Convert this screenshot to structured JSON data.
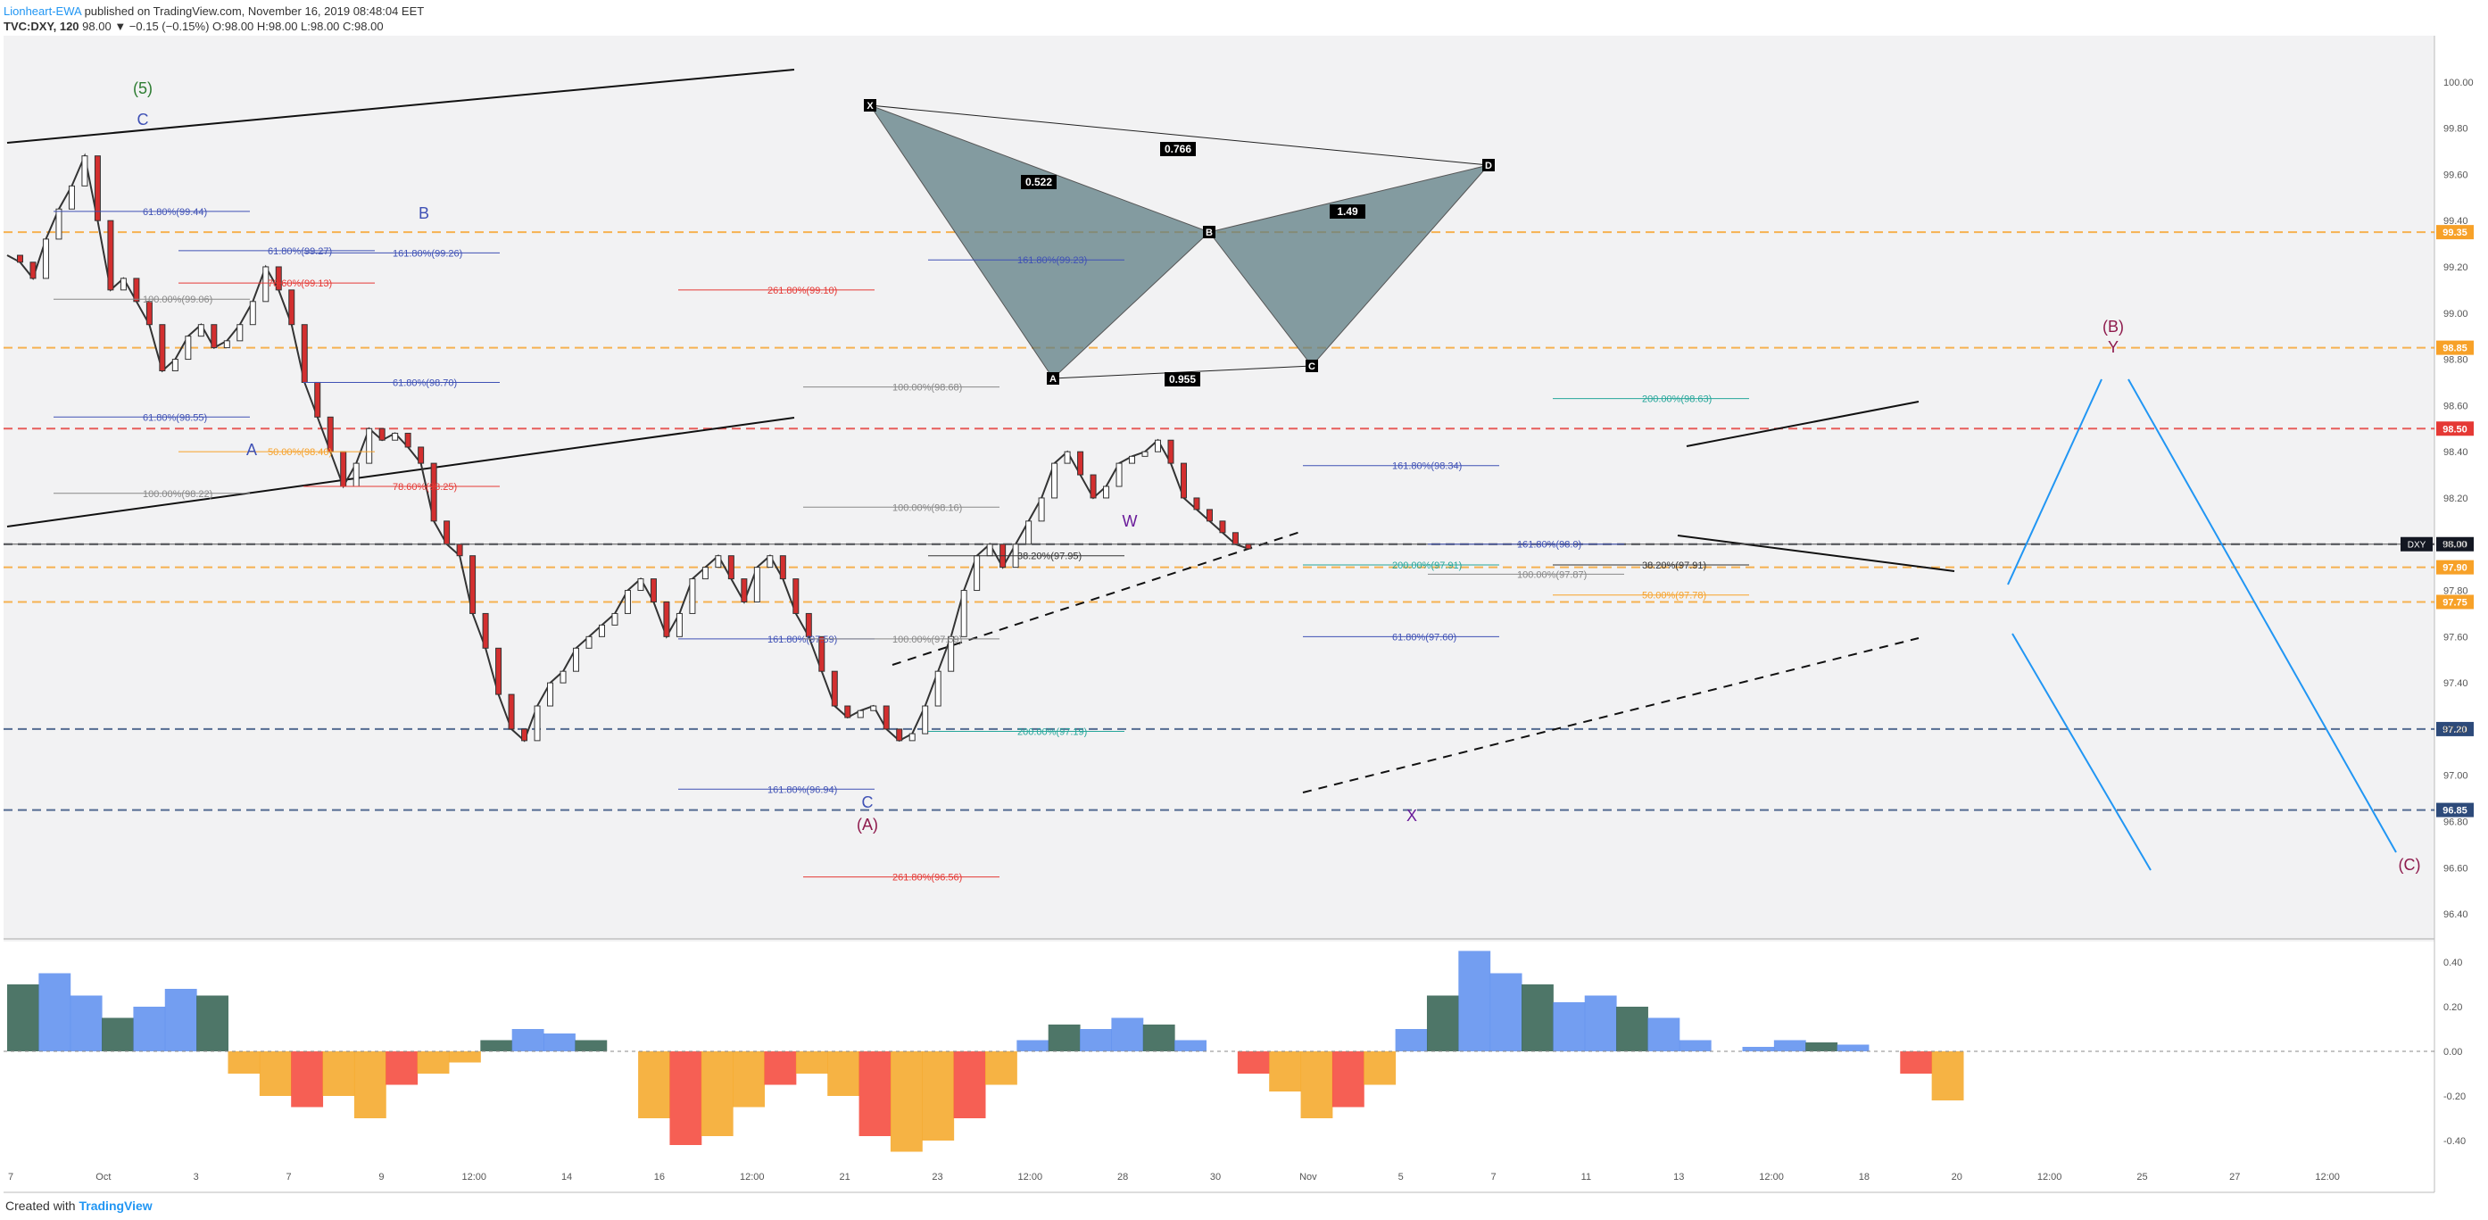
{
  "header": {
    "author": "Lionheart-EWA",
    "published": "published on TradingView.com, November 16, 2019 08:48:04 EET",
    "symbol": "TVC:DXY, 120",
    "quote": "98.00 ▼ −0.15 (−0.15%) O:98.00 H:98.00 L:98.00 C:98.00"
  },
  "footer": {
    "created_with": "Created with",
    "brand": "TradingView"
  },
  "chart_data": {
    "type": "line",
    "symbol": "DXY",
    "interval": "120",
    "ylim": [
      96.3,
      100.2
    ],
    "y_ticks": [
      100.0,
      99.8,
      99.6,
      99.4,
      99.2,
      99.0,
      98.8,
      98.6,
      98.4,
      98.2,
      98.0,
      97.8,
      97.6,
      97.4,
      97.2,
      97.0,
      96.8,
      96.6,
      96.4
    ],
    "x_ticks": [
      "7",
      "Oct",
      "3",
      "7",
      "9",
      "12:00",
      "14",
      "16",
      "12:00",
      "21",
      "23",
      "12:00",
      "28",
      "30",
      "Nov",
      "5",
      "7",
      "11",
      "13",
      "12:00",
      "18",
      "20",
      "12:00",
      "25",
      "27",
      "12:00"
    ],
    "last_price": 98.0,
    "series": [
      {
        "name": "DXY",
        "x": [
          0,
          4,
          8,
          12,
          16,
          20,
          24,
          28,
          32,
          36,
          40,
          44,
          48,
          52,
          56,
          60,
          64,
          68,
          72,
          76,
          80,
          84,
          88,
          92,
          96,
          100,
          104,
          108,
          112,
          116,
          120,
          124,
          128,
          132,
          136,
          140,
          144,
          148,
          152,
          156,
          160,
          164,
          168,
          172,
          176,
          180,
          184,
          188,
          192,
          196,
          200,
          204,
          208,
          212,
          216,
          220,
          224,
          228,
          232,
          236,
          240,
          244,
          248,
          252,
          256,
          260,
          264,
          268,
          272,
          276,
          280,
          284,
          288,
          292,
          296,
          300,
          304,
          308,
          312,
          316,
          320,
          324,
          328,
          332,
          336,
          340,
          344,
          348,
          352,
          356,
          360,
          364,
          368,
          372,
          376,
          380,
          384,
          388,
          392,
          396,
          400,
          404,
          408,
          412,
          416,
          420,
          424,
          428,
          432,
          436,
          440,
          444,
          448,
          452,
          456,
          460,
          464,
          468,
          472,
          476,
          480,
          484,
          488,
          492,
          496,
          500,
          504,
          508,
          512,
          516,
          520,
          524,
          528,
          532,
          536,
          540,
          544,
          548,
          552,
          556,
          560,
          564,
          568,
          572,
          576,
          580,
          584
        ],
        "values": [
          99.25,
          99.22,
          99.15,
          99.32,
          99.45,
          99.55,
          99.68,
          99.4,
          99.1,
          99.15,
          99.05,
          98.95,
          98.75,
          98.8,
          98.9,
          98.95,
          98.85,
          98.88,
          98.95,
          99.05,
          99.2,
          99.1,
          98.95,
          98.7,
          98.55,
          98.4,
          98.25,
          98.35,
          98.5,
          98.45,
          98.48,
          98.42,
          98.35,
          98.1,
          98.0,
          97.95,
          97.7,
          97.55,
          97.35,
          97.2,
          97.15,
          97.3,
          97.4,
          97.45,
          97.55,
          97.6,
          97.65,
          97.7,
          97.8,
          97.85,
          97.75,
          97.6,
          97.7,
          97.85,
          97.9,
          97.95,
          97.85,
          97.75,
          97.9,
          97.95,
          97.85,
          97.7,
          97.6,
          97.45,
          97.3,
          97.25,
          97.28,
          97.3,
          97.2,
          97.15,
          97.18,
          97.3,
          97.45,
          97.6,
          97.8,
          97.95,
          98.0,
          97.9,
          98.0,
          98.1,
          98.2,
          98.35,
          98.4,
          98.3,
          98.2,
          98.25,
          98.35,
          98.38,
          98.4,
          98.45,
          98.35,
          98.2,
          98.15,
          98.1,
          98.05,
          98.0,
          97.98,
          97.99,
          98.0,
          98.0,
          98.0,
          98.0,
          98.0,
          98.0,
          98.0,
          98.0,
          98.0,
          98.0,
          98.0,
          98.0,
          98.0,
          98.0,
          98.0,
          98.0,
          98.0,
          98.0,
          98.0,
          98.0,
          98.0,
          98.0,
          98.0,
          98.0,
          98.0,
          98.0,
          98.0,
          98.0,
          98.0,
          98.0,
          98.0,
          98.0,
          98.0,
          98.0,
          98.0,
          98.0,
          98.0,
          98.0,
          98.0,
          98.0,
          98.0,
          98.0,
          98.0,
          98.0,
          98.0,
          98.0,
          98.0,
          98.0,
          98.0
        ]
      }
    ],
    "price_tags": [
      {
        "value": "98.00",
        "color": "#131722"
      },
      {
        "value": "99.35",
        "color": "#f7a128"
      },
      {
        "value": "98.85",
        "color": "#f7a128"
      },
      {
        "value": "98.50",
        "color": "#e53935"
      },
      {
        "value": "97.90",
        "color": "#f7a128"
      },
      {
        "value": "97.75",
        "color": "#f7a128"
      },
      {
        "value": "97.20",
        "color": "#2d4a7a"
      },
      {
        "value": "96.85",
        "color": "#2d4a7a"
      }
    ],
    "fib_labels": [
      {
        "text": "61.80%(99.44)",
        "color": "#3f51b5"
      },
      {
        "text": "61.80%(99.27)",
        "color": "#3f51b5"
      },
      {
        "text": "161.80%(99.26)",
        "color": "#3f51b5"
      },
      {
        "text": "100.00%(99.06)",
        "color": "#888888"
      },
      {
        "text": "78.60%(99.13)",
        "color": "#e53935"
      },
      {
        "text": "61.80%(98.70)",
        "color": "#3f51b5"
      },
      {
        "text": "61.80%(98.55)",
        "color": "#3f51b5"
      },
      {
        "text": "50.00%(98.40)",
        "color": "#f7a128"
      },
      {
        "text": "78.60%(98.25)",
        "color": "#e53935"
      },
      {
        "text": "100.00%(98.22)",
        "color": "#888888"
      },
      {
        "text": "100.00%(98.16)",
        "color": "#888888"
      },
      {
        "text": "38.20%(97.95)",
        "color": "#333333"
      },
      {
        "text": "161.80%(97.59)",
        "color": "#3f51b5"
      },
      {
        "text": "100.00%(97.59)",
        "color": "#888888"
      },
      {
        "text": "200.00%(97.19)",
        "color": "#26a69a"
      },
      {
        "text": "161.80%(96.94)",
        "color": "#3f51b5"
      },
      {
        "text": "261.80%(96.56)",
        "color": "#e53935"
      },
      {
        "text": "161.80%(99.23)",
        "color": "#3f51b5"
      },
      {
        "text": "261.80%(99.10)",
        "color": "#e53935"
      },
      {
        "text": "100.00%(98.68)",
        "color": "#888888"
      },
      {
        "text": "200.00%(98.63)",
        "color": "#26a69a"
      },
      {
        "text": "161.80%(98.34)",
        "color": "#3f51b5"
      },
      {
        "text": "100.00%(97.87)",
        "color": "#888888"
      },
      {
        "text": "38.20%(97.91)",
        "color": "#333333"
      },
      {
        "text": "200.00%(97.91)",
        "color": "#26a69a"
      },
      {
        "text": "161.80%(98.0)",
        "color": "#3f51b5"
      },
      {
        "text": "50.00%(97.78)",
        "color": "#f7a128"
      },
      {
        "text": "61.80%(97.60)",
        "color": "#3f51b5"
      }
    ],
    "harmonic": {
      "points": [
        "X",
        "A",
        "B",
        "C",
        "D"
      ],
      "ratios": [
        "0.766",
        "0.522",
        "1.49",
        "0.955"
      ]
    },
    "wave_labels": [
      "(5)",
      "C",
      "B",
      "A",
      "C",
      "(A)",
      "W",
      "X",
      "Y",
      "(B)",
      "(C)"
    ],
    "oscillator": {
      "y_ticks": [
        0.4,
        0.2,
        0.0,
        -0.2,
        -0.4
      ],
      "values": [
        0.3,
        0.35,
        0.25,
        0.15,
        0.2,
        0.28,
        0.25,
        -0.1,
        -0.2,
        -0.25,
        -0.2,
        -0.3,
        -0.15,
        -0.1,
        -0.05,
        0.05,
        0.1,
        0.08,
        0.05,
        0.0,
        -0.3,
        -0.42,
        -0.38,
        -0.25,
        -0.15,
        -0.1,
        -0.2,
        -0.38,
        -0.45,
        -0.4,
        -0.3,
        -0.15,
        0.05,
        0.12,
        0.1,
        0.15,
        0.12,
        0.05,
        0.0,
        -0.1,
        -0.18,
        -0.3,
        -0.25,
        -0.15,
        0.1,
        0.25,
        0.45,
        0.35,
        0.3,
        0.22,
        0.25,
        0.2,
        0.15,
        0.05,
        0.0,
        0.02,
        0.05,
        0.04,
        0.03,
        0.0,
        -0.1,
        -0.22
      ]
    }
  }
}
